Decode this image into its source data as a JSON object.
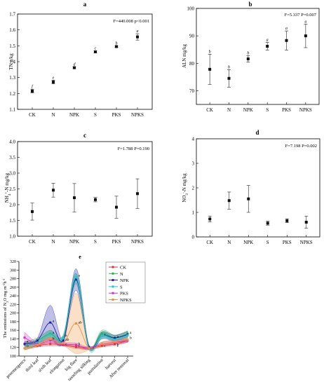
{
  "chart_data": [
    {
      "panel": "a",
      "type": "scatter",
      "categories": [
        "CK",
        "N",
        "NPK",
        "S",
        "PKS",
        "NPKS"
      ],
      "values": [
        1.215,
        1.272,
        1.362,
        1.462,
        1.495,
        1.556
      ],
      "errors": [
        0.012,
        0.012,
        0.006,
        0.006,
        0.005,
        0.02
      ],
      "letters": [
        "f",
        "e",
        "d",
        "c",
        "b",
        "a"
      ],
      "ylabel": "TN g/kg",
      "ylim": [
        1.1,
        1.7
      ],
      "yticks": [
        "1.1",
        "1.2",
        "1.3",
        "1.4",
        "1.5",
        "1.6",
        "1.7"
      ],
      "stats": "F=440.008 p<0.001"
    },
    {
      "panel": "b",
      "type": "scatter",
      "categories": [
        "CK",
        "N",
        "NPK",
        "S",
        "PKS",
        "NPKS"
      ],
      "values": [
        77.8,
        74.5,
        81.6,
        86.2,
        88.3,
        90.0
      ],
      "errors": [
        5.5,
        3.2,
        1.2,
        1.4,
        3.5,
        4.3
      ],
      "letters": [
        "b",
        "b",
        "b",
        "a",
        "a",
        "a"
      ],
      "ylabel": "ALN mg/kg",
      "ylim": [
        65,
        100
      ],
      "yticks": [
        "70",
        "80",
        "90",
        "100"
      ],
      "stats": "F=5.337 P=0.007"
    },
    {
      "panel": "c",
      "type": "scatter",
      "categories": [
        "CK",
        "N",
        "NPK",
        "S",
        "PKS",
        "NPKS"
      ],
      "values": [
        1.78,
        2.46,
        2.22,
        2.16,
        1.92,
        2.35
      ],
      "errors": [
        0.27,
        0.22,
        0.45,
        0.07,
        0.35,
        0.47
      ],
      "ylabel": "NH4+-N mg/kg",
      "ylim": [
        1.0,
        4.0
      ],
      "yticks": [
        "1.0",
        "1.5",
        "2.0",
        "2.5",
        "3.0",
        "3.5",
        "4.0"
      ],
      "stats": "F=1.788 P=0.190"
    },
    {
      "panel": "d",
      "type": "scatter",
      "categories": [
        "CK",
        "N",
        "NPK",
        "S",
        "PKS",
        "NPKS"
      ],
      "values": [
        0.73,
        1.48,
        1.55,
        0.56,
        0.66,
        0.6
      ],
      "errors": [
        0.12,
        0.35,
        0.55,
        0.08,
        0.08,
        0.25
      ],
      "ylabel": "NO3--N mg/kg",
      "ylim": [
        0,
        4
      ],
      "yticks": [
        "0",
        "1",
        "2",
        "3",
        "4"
      ],
      "stats": "F=7.198 P=0.002"
    },
    {
      "panel": "e",
      "type": "line",
      "x": [
        "preemergence",
        "third leaf",
        "sixth leaf",
        "elongation",
        "big flare",
        "tasseling silking",
        "pustulation",
        "harvest",
        "After removal"
      ],
      "ylabel": "The emissions of N2O mg m-2h-1",
      "ylim": [
        100,
        320
      ],
      "yticks": [
        "100",
        "120",
        "140",
        "160",
        "180",
        "200",
        "220",
        "240",
        "260",
        "280",
        "300",
        "320"
      ],
      "series": [
        {
          "name": "CK",
          "color": "#e0303a",
          "values": [
            118,
            124,
            128,
            126,
            121,
            118,
            124,
            128,
            136
          ],
          "band": [
            3,
            3,
            4,
            3,
            3,
            3,
            3,
            3,
            4
          ]
        },
        {
          "name": "N",
          "color": "#27b24a",
          "values": [
            128,
            136,
            152,
            143,
            280,
            121,
            152,
            143,
            152
          ],
          "band": [
            5,
            6,
            8,
            6,
            12,
            4,
            8,
            6,
            7
          ]
        },
        {
          "name": "NPK",
          "color": "#1e1ea8",
          "values": [
            128,
            136,
            178,
            136,
            278,
            121,
            148,
            142,
            150
          ],
          "band": [
            5,
            6,
            40,
            6,
            25,
            4,
            8,
            6,
            7
          ]
        },
        {
          "name": "S",
          "color": "#22c8c8",
          "values": [
            118,
            130,
            150,
            142,
            283,
            118,
            148,
            138,
            148
          ],
          "band": [
            4,
            5,
            8,
            6,
            10,
            4,
            7,
            5,
            6
          ]
        },
        {
          "name": "PKS",
          "color": "#cc30cc",
          "values": [
            143,
            128,
            136,
            128,
            126,
            118,
            128,
            132,
            136
          ],
          "band": [
            12,
            4,
            5,
            4,
            4,
            3,
            4,
            4,
            4
          ]
        },
        {
          "name": "NPKS",
          "color": "#f0903a",
          "values": [
            118,
            126,
            140,
            130,
            176,
            118,
            128,
            133,
            138
          ],
          "band": [
            4,
            4,
            6,
            5,
            70,
            4,
            5,
            5,
            5
          ]
        }
      ],
      "labels": [
        {
          "x": 0,
          "y": 132,
          "t": "a"
        },
        {
          "x": 0,
          "y": 121,
          "t": "b"
        },
        {
          "x": 1,
          "y": 121,
          "t": "c"
        },
        {
          "x": 2,
          "y": 179,
          "t": "a"
        },
        {
          "x": 2,
          "y": 152,
          "t": "a"
        },
        {
          "x": 2,
          "y": 138,
          "t": "b"
        },
        {
          "x": 3,
          "y": 146,
          "t": "a"
        },
        {
          "x": 3,
          "y": 136,
          "t": "ab"
        },
        {
          "x": 3,
          "y": 125,
          "t": "c"
        },
        {
          "x": 4,
          "y": 285,
          "t": "a"
        },
        {
          "x": 4,
          "y": 176,
          "t": "ab"
        },
        {
          "x": 4,
          "y": 126,
          "t": "b"
        },
        {
          "x": 4,
          "y": 121,
          "t": "c"
        },
        {
          "x": 6,
          "y": 148,
          "t": "a"
        },
        {
          "x": 6,
          "y": 121,
          "t": "c"
        },
        {
          "x": 7,
          "y": 143,
          "t": "a"
        },
        {
          "x": 7,
          "y": 124,
          "t": "b"
        },
        {
          "x": 7,
          "y": 121,
          "t": "c"
        },
        {
          "x": 8,
          "y": 152,
          "t": "a"
        },
        {
          "x": 8,
          "y": 140,
          "t": "b"
        }
      ],
      "legend_position": "top-right"
    }
  ]
}
